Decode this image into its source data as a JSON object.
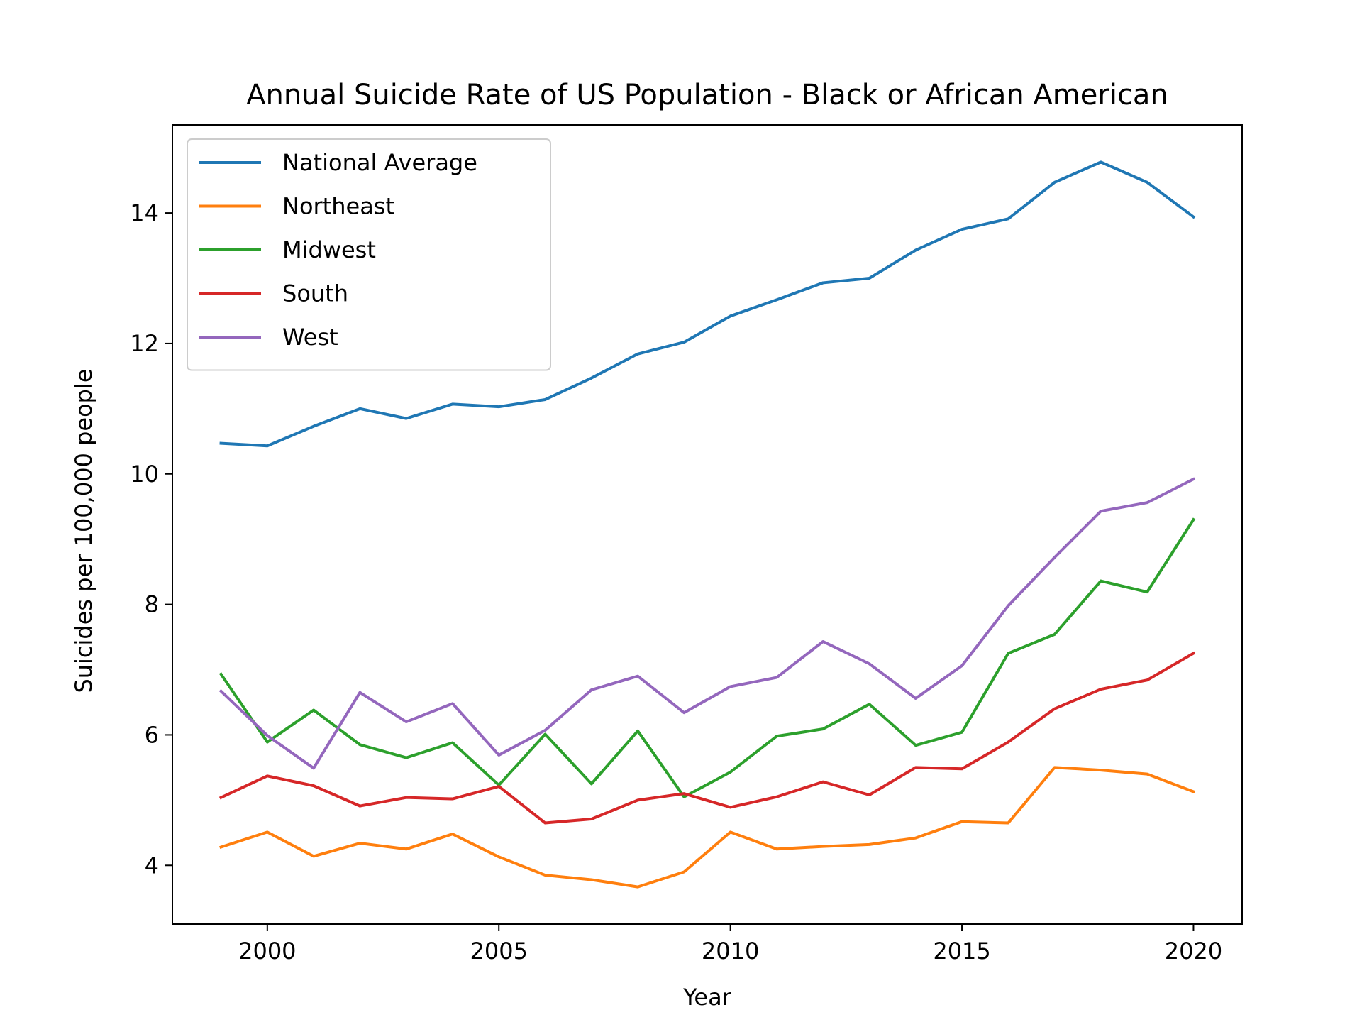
{
  "chart_data": {
    "type": "line",
    "title": "Annual Suicide Rate of US Population - Black or African American",
    "xlabel": "Year",
    "ylabel": "Suicides per 100,000 people",
    "xlim": [
      1997.95,
      2021.05
    ],
    "ylim": [
      3.1,
      15.35
    ],
    "x_ticks": [
      2000,
      2005,
      2010,
      2015,
      2020
    ],
    "y_ticks": [
      4,
      6,
      8,
      10,
      12,
      14
    ],
    "grid": false,
    "legend_position": "upper-left",
    "x": [
      1999,
      2000,
      2001,
      2002,
      2003,
      2004,
      2005,
      2006,
      2007,
      2008,
      2009,
      2010,
      2011,
      2012,
      2013,
      2014,
      2015,
      2016,
      2017,
      2018,
      2019,
      2020
    ],
    "series": [
      {
        "name": "National Average",
        "color": "#1f77b4",
        "values": [
          10.47,
          10.43,
          10.73,
          11.0,
          10.85,
          11.07,
          11.03,
          11.14,
          11.47,
          11.84,
          12.02,
          12.42,
          12.67,
          12.93,
          13.0,
          13.43,
          13.75,
          13.91,
          14.47,
          14.78,
          14.47,
          13.94
        ]
      },
      {
        "name": "Northeast",
        "color": "#ff7f0e",
        "values": [
          4.28,
          4.51,
          4.14,
          4.34,
          4.25,
          4.48,
          4.13,
          3.85,
          3.78,
          3.67,
          3.9,
          4.51,
          4.25,
          4.29,
          4.32,
          4.42,
          4.67,
          4.65,
          5.5,
          5.46,
          5.4,
          5.13
        ]
      },
      {
        "name": "Midwest",
        "color": "#2ca02c",
        "values": [
          6.93,
          5.89,
          6.38,
          5.85,
          5.65,
          5.88,
          5.23,
          6.01,
          5.25,
          6.06,
          5.05,
          5.43,
          5.98,
          6.09,
          6.47,
          5.84,
          6.04,
          7.25,
          7.54,
          8.36,
          8.19,
          9.3
        ]
      },
      {
        "name": "South",
        "color": "#d62728",
        "values": [
          5.04,
          5.37,
          5.22,
          4.91,
          5.04,
          5.02,
          5.21,
          4.65,
          4.71,
          5.0,
          5.1,
          4.89,
          5.05,
          5.28,
          5.08,
          5.5,
          5.48,
          5.89,
          6.4,
          6.7,
          6.84,
          7.25
        ]
      },
      {
        "name": "West",
        "color": "#9467bd",
        "values": [
          6.67,
          5.99,
          5.49,
          6.65,
          6.2,
          6.48,
          5.69,
          6.07,
          6.69,
          6.9,
          6.34,
          6.74,
          6.88,
          7.43,
          7.09,
          6.56,
          7.06,
          7.98,
          8.72,
          9.43,
          9.56,
          9.92
        ]
      }
    ]
  }
}
